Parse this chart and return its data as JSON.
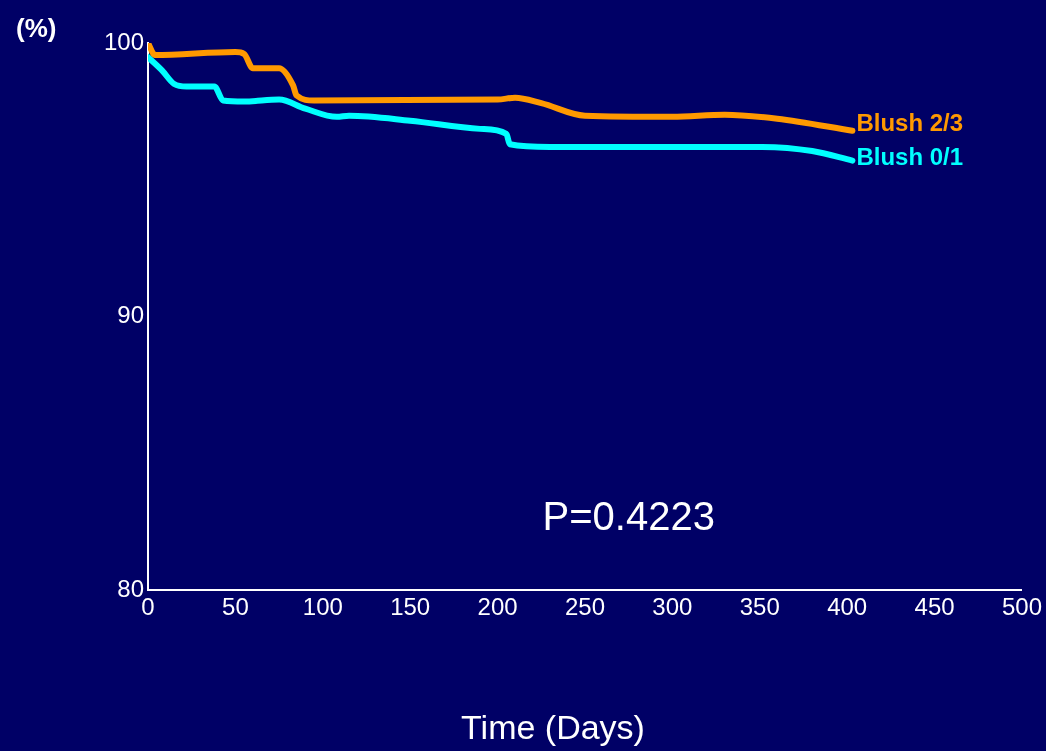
{
  "chart_data": {
    "type": "line",
    "ylabel": "(%)",
    "xlabel": "Time (Days)",
    "xlim": [
      0,
      500
    ],
    "xticks": [
      0,
      50,
      100,
      150,
      200,
      250,
      300,
      350,
      400,
      450,
      500
    ],
    "ylim": [
      80,
      100
    ],
    "yticks": [
      80,
      90,
      100
    ],
    "grid": false,
    "marker": "none",
    "line_style": "solid",
    "annotations": [
      "P=0.4223"
    ],
    "series": [
      {
        "name": "Blush 2/3",
        "color": "#ff9900",
        "x": [
          0,
          4,
          50,
          55,
          60,
          75,
          83,
          85,
          95,
          200,
          210,
          225,
          250,
          300,
          330,
          360,
          403
        ],
        "values": [
          100.0,
          99.56,
          99.67,
          99.6,
          99.08,
          99.08,
          98.45,
          98.08,
          97.9,
          97.93,
          98.0,
          97.8,
          97.34,
          97.3,
          97.38,
          97.23,
          96.79
        ]
      },
      {
        "name": "Blush 0/1",
        "color": "#00ffff",
        "x": [
          0,
          8,
          15,
          22,
          38,
          43,
          55,
          75,
          90,
          108,
          115,
          150,
          190,
          205,
          207,
          230,
          300,
          350,
          380,
          403
        ],
        "values": [
          99.48,
          99.0,
          98.5,
          98.41,
          98.41,
          97.9,
          97.86,
          97.93,
          97.6,
          97.3,
          97.34,
          97.16,
          96.86,
          96.68,
          96.3,
          96.2,
          96.2,
          96.2,
          96.05,
          95.7
        ]
      }
    ]
  }
}
